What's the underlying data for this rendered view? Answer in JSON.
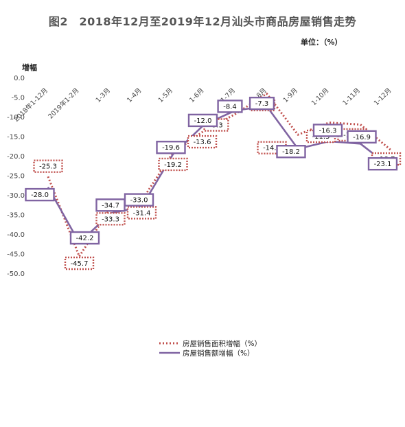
{
  "title": "图2　2018年12月至2019年12月汕头市商品房屋销售走势",
  "unit": "单位：（%）",
  "chart_data": {
    "type": "line",
    "ylabel": "增幅",
    "xlabel": "",
    "ylim": [
      -50,
      0
    ],
    "yticks": [
      0.0,
      -5.0,
      -10.0,
      -15.0,
      -20.0,
      -25.0,
      -30.0,
      -35.0,
      -40.0,
      -45.0,
      -50.0
    ],
    "categories": [
      "2018年1-12月",
      "2019年1-2月",
      "1-3月",
      "1-4月",
      "1-5月",
      "1-6月",
      "1-7月",
      "1-8月",
      "1-9月",
      "1-10月",
      "1-11月",
      "1-12月"
    ],
    "series": [
      {
        "name": "房屋销售面积增幅（%）",
        "color": "#c0504d",
        "style": "dotted",
        "values": [
          -25.3,
          -45.7,
          -33.3,
          -31.4,
          -19.2,
          -13.6,
          -9.3,
          -4.1,
          -14.6,
          -11.5,
          -12.0,
          -18.7
        ]
      },
      {
        "name": "房屋销售额增幅（%）",
        "color": "#8064a2",
        "style": "solid",
        "values": [
          -28.0,
          -42.2,
          -34.7,
          -33.0,
          -19.6,
          -12.0,
          -8.4,
          -7.3,
          -18.2,
          -16.3,
          -16.9,
          -23.1
        ]
      }
    ],
    "legend_position": "bottom",
    "grid": false
  }
}
